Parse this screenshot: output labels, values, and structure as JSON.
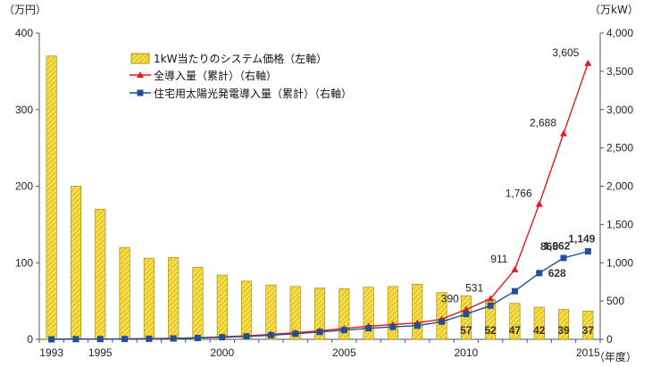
{
  "chart_data": {
    "type": "bar",
    "left_unit": "（万円）",
    "right_unit": "（万kW）",
    "x_unit": "（年度）",
    "years": [
      1993,
      1994,
      1995,
      1996,
      1997,
      1998,
      1999,
      2000,
      2001,
      2002,
      2003,
      2004,
      2005,
      2006,
      2007,
      2008,
      2009,
      2010,
      2011,
      2012,
      2013,
      2014,
      2015
    ],
    "x_tick_labels": [
      {
        "year": 1993,
        "label": "1993"
      },
      {
        "year": 1995,
        "label": "1995"
      },
      {
        "year": 2000,
        "label": "2000"
      },
      {
        "year": 2005,
        "label": "2005"
      },
      {
        "year": 2010,
        "label": "2010"
      },
      {
        "year": 2015,
        "label": "2015"
      }
    ],
    "left_axis": {
      "min": 0,
      "max": 400,
      "ticks": [
        "0",
        "100",
        "200",
        "300",
        "400"
      ]
    },
    "right_axis": {
      "min": 0,
      "max": 4000,
      "ticks": [
        "0",
        "500",
        "1,000",
        "1,500",
        "2,000",
        "2,500",
        "3,000",
        "3,500",
        "4,000"
      ]
    },
    "series": [
      {
        "name": "1kW当たりのシステム価格（左軸）",
        "kind": "bar",
        "axis": "left",
        "color": "#f2cf1a",
        "values": [
          370,
          200,
          170,
          120,
          106,
          107,
          94,
          84,
          76,
          71,
          69,
          67,
          66,
          68,
          69,
          72,
          61,
          57,
          52,
          47,
          42,
          39,
          37
        ]
      },
      {
        "name": "全導入量（累計）（右軸）",
        "kind": "line",
        "axis": "right",
        "color": "#e8191e",
        "values": [
          2,
          3,
          4,
          6,
          9,
          13,
          21,
          33,
          45,
          64,
          86,
          112,
          142,
          171,
          192,
          214,
          263,
          390,
          531,
          911,
          1766,
          2688,
          3605
        ]
      },
      {
        "name": "住宅用太陽光発電導入量（累計）（右軸）",
        "kind": "line",
        "axis": "right",
        "color": "#1f4e9c",
        "values": [
          0,
          2,
          3,
          4,
          7,
          11,
          17,
          27,
          38,
          54,
          73,
          96,
          120,
          144,
          162,
          178,
          230,
          330,
          440,
          628,
          865,
          1062,
          1149
        ]
      }
    ],
    "bar_labels": [
      {
        "year": 2010,
        "label": "57"
      },
      {
        "year": 2011,
        "label": "52"
      },
      {
        "year": 2012,
        "label": "47"
      },
      {
        "year": 2013,
        "label": "42"
      },
      {
        "year": 2014,
        "label": "39"
      },
      {
        "year": 2015,
        "label": "37"
      }
    ],
    "total_labels": [
      {
        "year": 2010,
        "label": "390"
      },
      {
        "year": 2011,
        "label": "531"
      },
      {
        "year": 2012,
        "label": "911"
      },
      {
        "year": 2013,
        "label": "1,766"
      },
      {
        "year": 2014,
        "label": "2,688"
      },
      {
        "year": 2015,
        "label": "3,605"
      }
    ],
    "residential_labels": [
      {
        "year": 2013,
        "label": "628"
      },
      {
        "year": 2014,
        "label": "865"
      },
      {
        "year": 2015,
        "label": "1,062"
      },
      {
        "year": 2015,
        "label": "1,149"
      }
    ],
    "legend": "top-left"
  }
}
